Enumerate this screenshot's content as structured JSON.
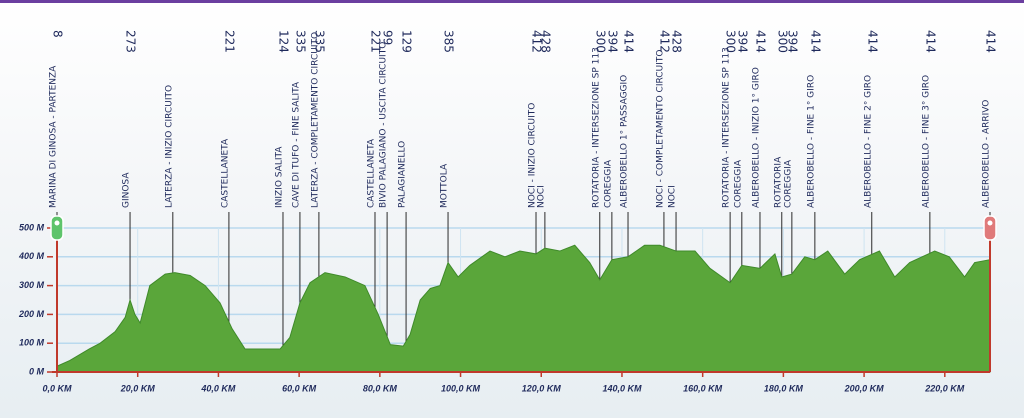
{
  "chart_data": {
    "type": "area",
    "color": "#5aa63a",
    "x": [
      0,
      3.2,
      8,
      10.7,
      14.4,
      16.9,
      18.1,
      19.3,
      20.6,
      23,
      26.8,
      29.2,
      33,
      36.7,
      40.4,
      43.4,
      46.6,
      50.3,
      55.3,
      57.7,
      60.2,
      62.7,
      66.4,
      71.4,
      76.3,
      79.6,
      82.6,
      85.8,
      87.5,
      90,
      92.5,
      94.9,
      96.9,
      99.4,
      102.3,
      107.3,
      111,
      114.7,
      118.7,
      120.9,
      124.6,
      128.3,
      132,
      134.5,
      137.5,
      141.5,
      145.6,
      149.4,
      153.4,
      158.1,
      161.8,
      166.8,
      169.7,
      174.2,
      177.9,
      179.6,
      182.1,
      185.3,
      187.8,
      191,
      195.2,
      198.9,
      203.8,
      207.6,
      211.3,
      217.5,
      221.1,
      224.9,
      227.4,
      231.2
    ],
    "values": [
      20,
      40,
      80,
      100,
      140,
      190,
      250,
      200,
      170,
      300,
      340,
      345,
      335,
      300,
      240,
      150,
      80,
      80,
      80,
      120,
      240,
      310,
      345,
      330,
      300,
      200,
      95,
      90,
      130,
      250,
      290,
      300,
      380,
      330,
      370,
      420,
      400,
      420,
      410,
      430,
      420,
      440,
      380,
      320,
      390,
      400,
      440,
      440,
      420,
      420,
      360,
      310,
      370,
      360,
      410,
      330,
      340,
      400,
      390,
      420,
      340,
      390,
      420,
      330,
      380,
      420,
      400,
      330,
      380,
      390
    ],
    "xlim": [
      0,
      231.2
    ],
    "ylim": [
      0,
      500
    ],
    "xticks": [
      {
        "value": 0,
        "label": "0,0 KM"
      },
      {
        "value": 20,
        "label": "20,0 KM"
      },
      {
        "value": 40,
        "label": "40,0 KM"
      },
      {
        "value": 60,
        "label": "60,0 KM"
      },
      {
        "value": 80,
        "label": "80,0 KM"
      },
      {
        "value": 100,
        "label": "100,0 KM"
      },
      {
        "value": 120,
        "label": "120,0 KM"
      },
      {
        "value": 140,
        "label": "140,0 KM"
      },
      {
        "value": 160,
        "label": "160,0 KM"
      },
      {
        "value": 180,
        "label": "180,0 KM"
      },
      {
        "value": 200,
        "label": "200,0 KM"
      },
      {
        "value": 220,
        "label": "220,0 KM"
      }
    ],
    "yticks": [
      {
        "value": 0,
        "label": "0 M"
      },
      {
        "value": 100,
        "label": "100 M"
      },
      {
        "value": 200,
        "label": "200 M"
      },
      {
        "value": 300,
        "label": "300 M"
      },
      {
        "value": 400,
        "label": "400 M"
      },
      {
        "value": 500,
        "label": "500 M"
      }
    ],
    "grid": true,
    "waypoints": [
      {
        "label": "MARINA DI GINOSA - PARTENZA",
        "km": 0,
        "altitude": 8
      },
      {
        "label": "GINOSA",
        "km": 18.1,
        "altitude": 273
      },
      {
        "label": "LATERZA - INIZIO CIRCUITO",
        "km": 28.7,
        "altitude": null
      },
      {
        "label": "CASTELLANETA",
        "km": 42.6,
        "altitude": 221
      },
      {
        "label": "INIZIO SALITA",
        "km": 56.0,
        "altitude": 124
      },
      {
        "label": "CAVE DI TUFO - FINE SALITA",
        "km": 60.2,
        "altitude": 335
      },
      {
        "label": "LATERZA - COMPLETAMENTO CIRCUITO",
        "km": 64.9,
        "altitude": 335
      },
      {
        "label": "CASTELLANETA",
        "km": 78.8,
        "altitude": 221
      },
      {
        "label": "BIVIO PALAGIANO - USCITA CIRCUITO",
        "km": 81.8,
        "altitude": 99
      },
      {
        "label": "PALAGIANELLO",
        "km": 86.5,
        "altitude": 129
      },
      {
        "label": "MOTTOLA",
        "km": 96.9,
        "altitude": 385
      },
      {
        "label": "NOCI - INIZIO CIRCUITO",
        "km": 118.7,
        "altitude": 412
      },
      {
        "label": "NOCI",
        "km": 120.9,
        "altitude": 428
      },
      {
        "label": "ROTATORIA - INTERSEZIONE SP 113",
        "km": 134.5,
        "altitude": 300
      },
      {
        "label": "COREGGIA",
        "km": 137.5,
        "altitude": 394
      },
      {
        "label": "ALBEROBELLO 1° PASSAGGIO",
        "km": 141.5,
        "altitude": 414
      },
      {
        "label": "NOCI - COMPLETAMENTO CIRCUITO",
        "km": 150.4,
        "altitude": 412
      },
      {
        "label": "NOCI",
        "km": 153.4,
        "altitude": 428
      },
      {
        "label": "ROTATORIA - INTERSEZIONE SP 113",
        "km": 166.8,
        "altitude": 300
      },
      {
        "label": "COREGGIA",
        "km": 169.7,
        "altitude": 394
      },
      {
        "label": "ALBEROBELLO - INIZIO 1° GIRO",
        "km": 174.2,
        "altitude": 414
      },
      {
        "label": "ROTATORIA",
        "km": 179.6,
        "altitude": 300
      },
      {
        "label": "COREGGIA",
        "km": 182.1,
        "altitude": 394
      },
      {
        "label": "ALBEROBELLO - FINE 1° GIRO",
        "km": 187.8,
        "altitude": 414
      },
      {
        "label": "ALBEROBELLO - FINE 2° GIRO",
        "km": 201.9,
        "altitude": 414
      },
      {
        "label": "ALBEROBELLO - FINE 3° GIRO",
        "km": 216.3,
        "altitude": 414
      },
      {
        "label": "ALBEROBELLO - ARRIVO",
        "km": 231.2,
        "altitude": 414
      }
    ]
  }
}
